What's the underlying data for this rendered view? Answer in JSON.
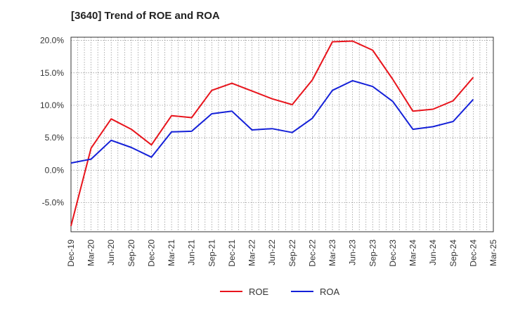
{
  "chart_data": {
    "type": "line",
    "title": "[3640]  Trend of ROE and ROA",
    "xlabel": "",
    "ylabel": "",
    "ylim": [
      -9.5,
      20.5
    ],
    "yticks": [
      20,
      15,
      10,
      5,
      0,
      -5
    ],
    "ytick_labels": [
      "20.0%",
      "15.0%",
      "10.0%",
      "5.0%",
      "0.0%",
      "-5.0%"
    ],
    "categories": [
      "Dec-19",
      "Mar-20",
      "Jun-20",
      "Sep-20",
      "Dec-20",
      "Mar-21",
      "Jun-21",
      "Sep-21",
      "Dec-21",
      "Mar-22",
      "Jun-22",
      "Sep-22",
      "Dec-22",
      "Mar-23",
      "Jun-23",
      "Sep-23",
      "Dec-23",
      "Mar-24",
      "Jun-24",
      "Sep-24",
      "Dec-24",
      "Mar-25"
    ],
    "grid": true,
    "legend_position": "bottom",
    "series": [
      {
        "name": "ROE",
        "color": "#e8141c",
        "values": [
          -8.6,
          3.4,
          7.9,
          6.3,
          3.9,
          8.4,
          8.1,
          12.3,
          13.4,
          12.2,
          11.0,
          10.1,
          13.9,
          19.8,
          19.9,
          18.5,
          14.0,
          9.1,
          9.4,
          10.7,
          14.3,
          null
        ]
      },
      {
        "name": "ROA",
        "color": "#1420d8",
        "values": [
          1.1,
          1.7,
          4.6,
          3.5,
          2.0,
          5.9,
          6.0,
          8.7,
          9.1,
          6.2,
          6.4,
          5.8,
          8.0,
          12.3,
          13.8,
          12.9,
          10.6,
          6.3,
          6.7,
          7.5,
          10.9,
          null
        ]
      }
    ]
  }
}
